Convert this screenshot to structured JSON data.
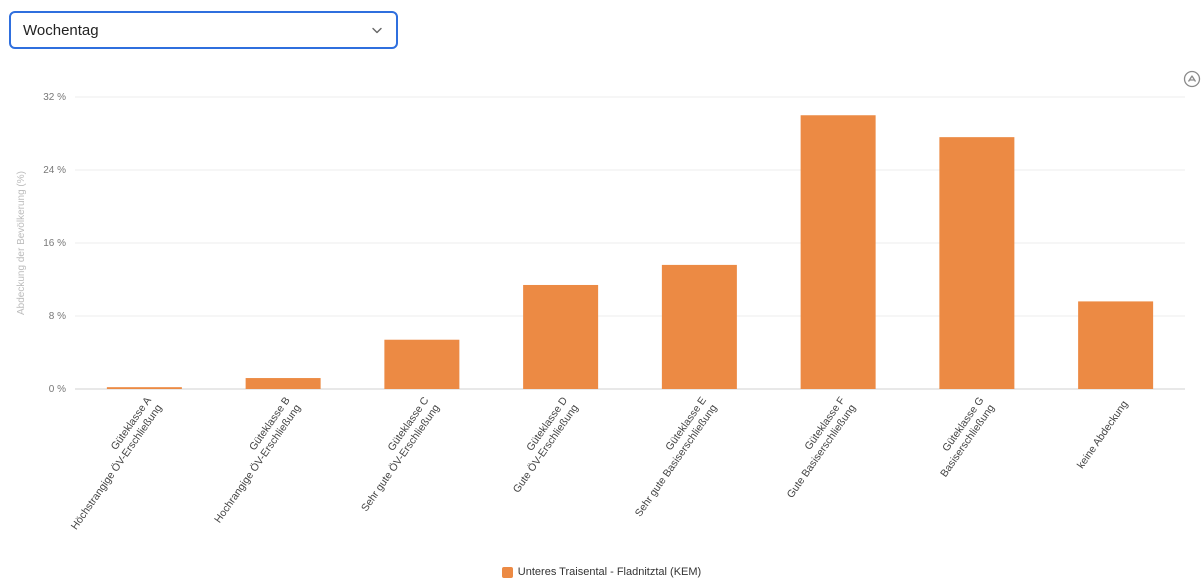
{
  "selector": {
    "value": "Wochentag",
    "icon": "chevron-down-icon"
  },
  "menu": {
    "icon": "chart-menu-icon"
  },
  "chart_data": {
    "type": "bar",
    "ylabel": "Abdeckung der Bevölkerung (%)",
    "ylim": [
      0,
      32
    ],
    "yticks": [
      0,
      8,
      16,
      24,
      32
    ],
    "ytick_labels": [
      "0 %",
      "8 %",
      "16 %",
      "24 %",
      "32 %"
    ],
    "grid": true,
    "legend_position": "bottom-center",
    "categories": [
      [
        "Güteklasse A",
        "Höchstrangige ÖV-Erschließung"
      ],
      [
        "Güteklasse B",
        "Hochrangige ÖV-Erschließung"
      ],
      [
        "Güteklasse C",
        "Sehr gute ÖV-Erschließung"
      ],
      [
        "Güteklasse D",
        "Gute ÖV-Erschließung"
      ],
      [
        "Güteklasse E",
        "Sehr gute Basiserschließung"
      ],
      [
        "Güteklasse F",
        "Gute Basiserschließung"
      ],
      [
        "Güteklasse G",
        "Basiserschließung"
      ],
      [
        "keine Abdeckung"
      ]
    ],
    "series": [
      {
        "name": "Unteres Traisental - Fladnitztal (KEM)",
        "color": "#ec8a44",
        "values": [
          0.2,
          1.2,
          5.4,
          11.4,
          13.6,
          30.0,
          27.6,
          9.6
        ]
      }
    ]
  }
}
